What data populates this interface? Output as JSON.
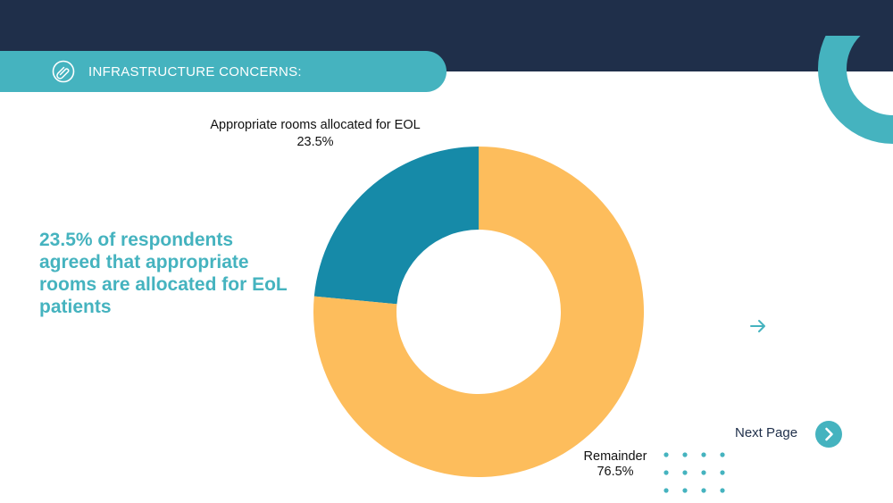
{
  "header": {
    "title": "INFRASTRUCTURE CONCERNS:",
    "icon": "paperclip-icon"
  },
  "headline": "23.5% of respondents agreed that appropriate rooms are allocated for EoL patients",
  "navigation": {
    "next_label": "Next Page",
    "next_icon": "chevron-right-icon",
    "arrow_icon": "arrow-right-icon"
  },
  "colors": {
    "navy": "#1f2f4a",
    "teal": "#45b3bf",
    "slice_rooms": "#168aa8",
    "slice_remainder": "#fdbd5c"
  },
  "chart_data": {
    "type": "pie",
    "donut": true,
    "slices": [
      {
        "label": "Appropriate rooms allocated for EOL",
        "value": 23.5,
        "value_label": "23.5%",
        "color": "#168aa8"
      },
      {
        "label": "Remainder",
        "value": 76.5,
        "value_label": "76.5%",
        "color": "#fdbd5c"
      }
    ]
  }
}
